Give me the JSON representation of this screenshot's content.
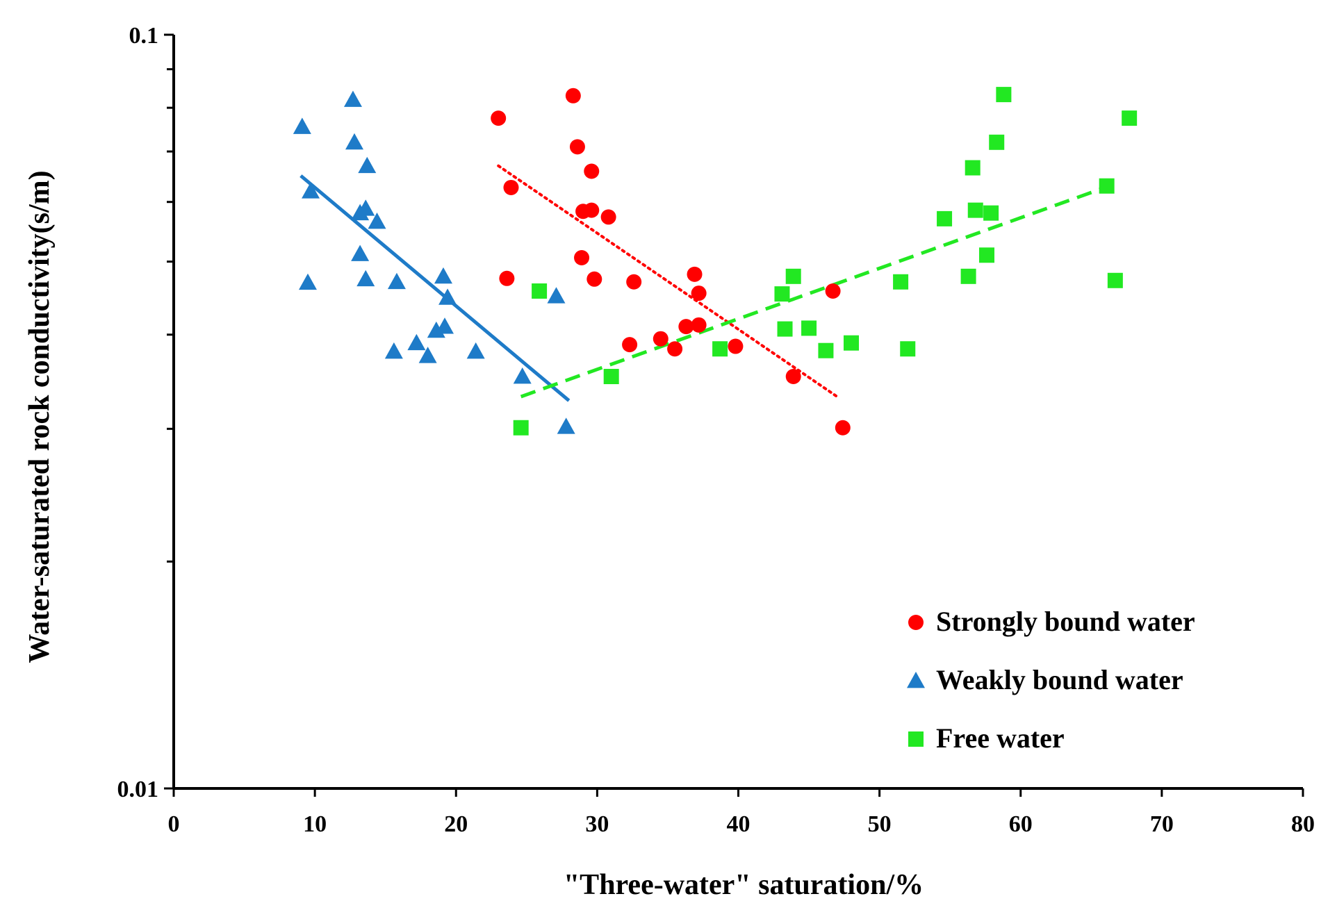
{
  "chart_data": {
    "type": "scatter",
    "xlabel": "\"Three-water\" saturation/%",
    "ylabel": "Water-saturated rock conductivity(s/m)",
    "xlim": [
      0,
      80
    ],
    "ylim": [
      0.01,
      0.1
    ],
    "yscale": "log",
    "x_ticks": [
      0,
      10,
      20,
      30,
      40,
      50,
      60,
      70,
      80
    ],
    "x_tick_labels": [
      "0",
      "10",
      "20",
      "30",
      "40",
      "50",
      "60",
      "70",
      "80"
    ],
    "y_tick_labels": [
      {
        "value": 0.1,
        "label": "0.1"
      },
      {
        "value": 0.01,
        "label": "0.01"
      }
    ],
    "y_minor_ticks": [
      0.02,
      0.03,
      0.04,
      0.05,
      0.06,
      0.07,
      0.08,
      0.09
    ],
    "legend_position": "bottom-right",
    "series": [
      {
        "name": "Strongly bound water",
        "marker": "circle",
        "color": "#ff0000",
        "points": [
          [
            23.0,
            0.0775
          ],
          [
            23.9,
            0.0627
          ],
          [
            23.6,
            0.0475
          ],
          [
            28.3,
            0.083
          ],
          [
            28.6,
            0.071
          ],
          [
            29.0,
            0.0583
          ],
          [
            29.6,
            0.0585
          ],
          [
            29.6,
            0.0659
          ],
          [
            28.9,
            0.0506
          ],
          [
            30.8,
            0.0573
          ],
          [
            29.8,
            0.0474
          ],
          [
            32.6,
            0.047
          ],
          [
            32.3,
            0.0388
          ],
          [
            34.5,
            0.0395
          ],
          [
            35.5,
            0.0383
          ],
          [
            36.3,
            0.041
          ],
          [
            36.9,
            0.0481
          ],
          [
            37.2,
            0.0454
          ],
          [
            37.2,
            0.0412
          ],
          [
            39.8,
            0.0386
          ],
          [
            43.9,
            0.0352
          ],
          [
            46.7,
            0.0457
          ],
          [
            47.4,
            0.0301
          ]
        ],
        "trend": {
          "style": "dotted",
          "x": [
            23.0,
            47.0
          ],
          "y": [
            0.067,
            0.0331
          ]
        }
      },
      {
        "name": "Weakly bound water",
        "marker": "triangle",
        "color": "#1e7bc8",
        "points": [
          [
            9.1,
            0.0755
          ],
          [
            9.7,
            0.062
          ],
          [
            9.5,
            0.0469
          ],
          [
            12.7,
            0.082
          ],
          [
            12.8,
            0.072
          ],
          [
            13.2,
            0.058
          ],
          [
            13.6,
            0.0588
          ],
          [
            13.7,
            0.067
          ],
          [
            13.2,
            0.0512
          ],
          [
            13.6,
            0.0474
          ],
          [
            14.4,
            0.0565
          ],
          [
            15.8,
            0.047
          ],
          [
            15.6,
            0.038
          ],
          [
            17.2,
            0.039
          ],
          [
            18.0,
            0.0375
          ],
          [
            18.6,
            0.0405
          ],
          [
            19.1,
            0.0478
          ],
          [
            19.4,
            0.0448
          ],
          [
            19.2,
            0.041
          ],
          [
            21.4,
            0.038
          ],
          [
            24.7,
            0.0352
          ],
          [
            27.1,
            0.045
          ],
          [
            27.8,
            0.0302
          ]
        ],
        "trend": {
          "style": "solid",
          "x": [
            9.0,
            28.0
          ],
          "y": [
            0.065,
            0.0327
          ]
        }
      },
      {
        "name": "Free water",
        "marker": "square",
        "color": "#22e822",
        "points": [
          [
            24.6,
            0.0301
          ],
          [
            25.9,
            0.0457
          ],
          [
            31.0,
            0.0352
          ],
          [
            38.7,
            0.0383
          ],
          [
            43.1,
            0.0453
          ],
          [
            43.3,
            0.0407
          ],
          [
            43.9,
            0.0478
          ],
          [
            45.0,
            0.0408
          ],
          [
            46.2,
            0.0381
          ],
          [
            48.0,
            0.039
          ],
          [
            51.5,
            0.047
          ],
          [
            52.0,
            0.0383
          ],
          [
            54.6,
            0.057
          ],
          [
            56.3,
            0.0478
          ],
          [
            56.6,
            0.0666
          ],
          [
            56.8,
            0.0585
          ],
          [
            57.6,
            0.051
          ],
          [
            57.9,
            0.058
          ],
          [
            58.3,
            0.072
          ],
          [
            58.8,
            0.0833
          ],
          [
            66.1,
            0.063
          ],
          [
            66.7,
            0.0472
          ],
          [
            67.7,
            0.0775
          ]
        ],
        "trend": {
          "style": "dashed",
          "x": [
            24.6,
            66.5
          ],
          "y": [
            0.0331,
            0.0632
          ]
        }
      }
    ]
  }
}
